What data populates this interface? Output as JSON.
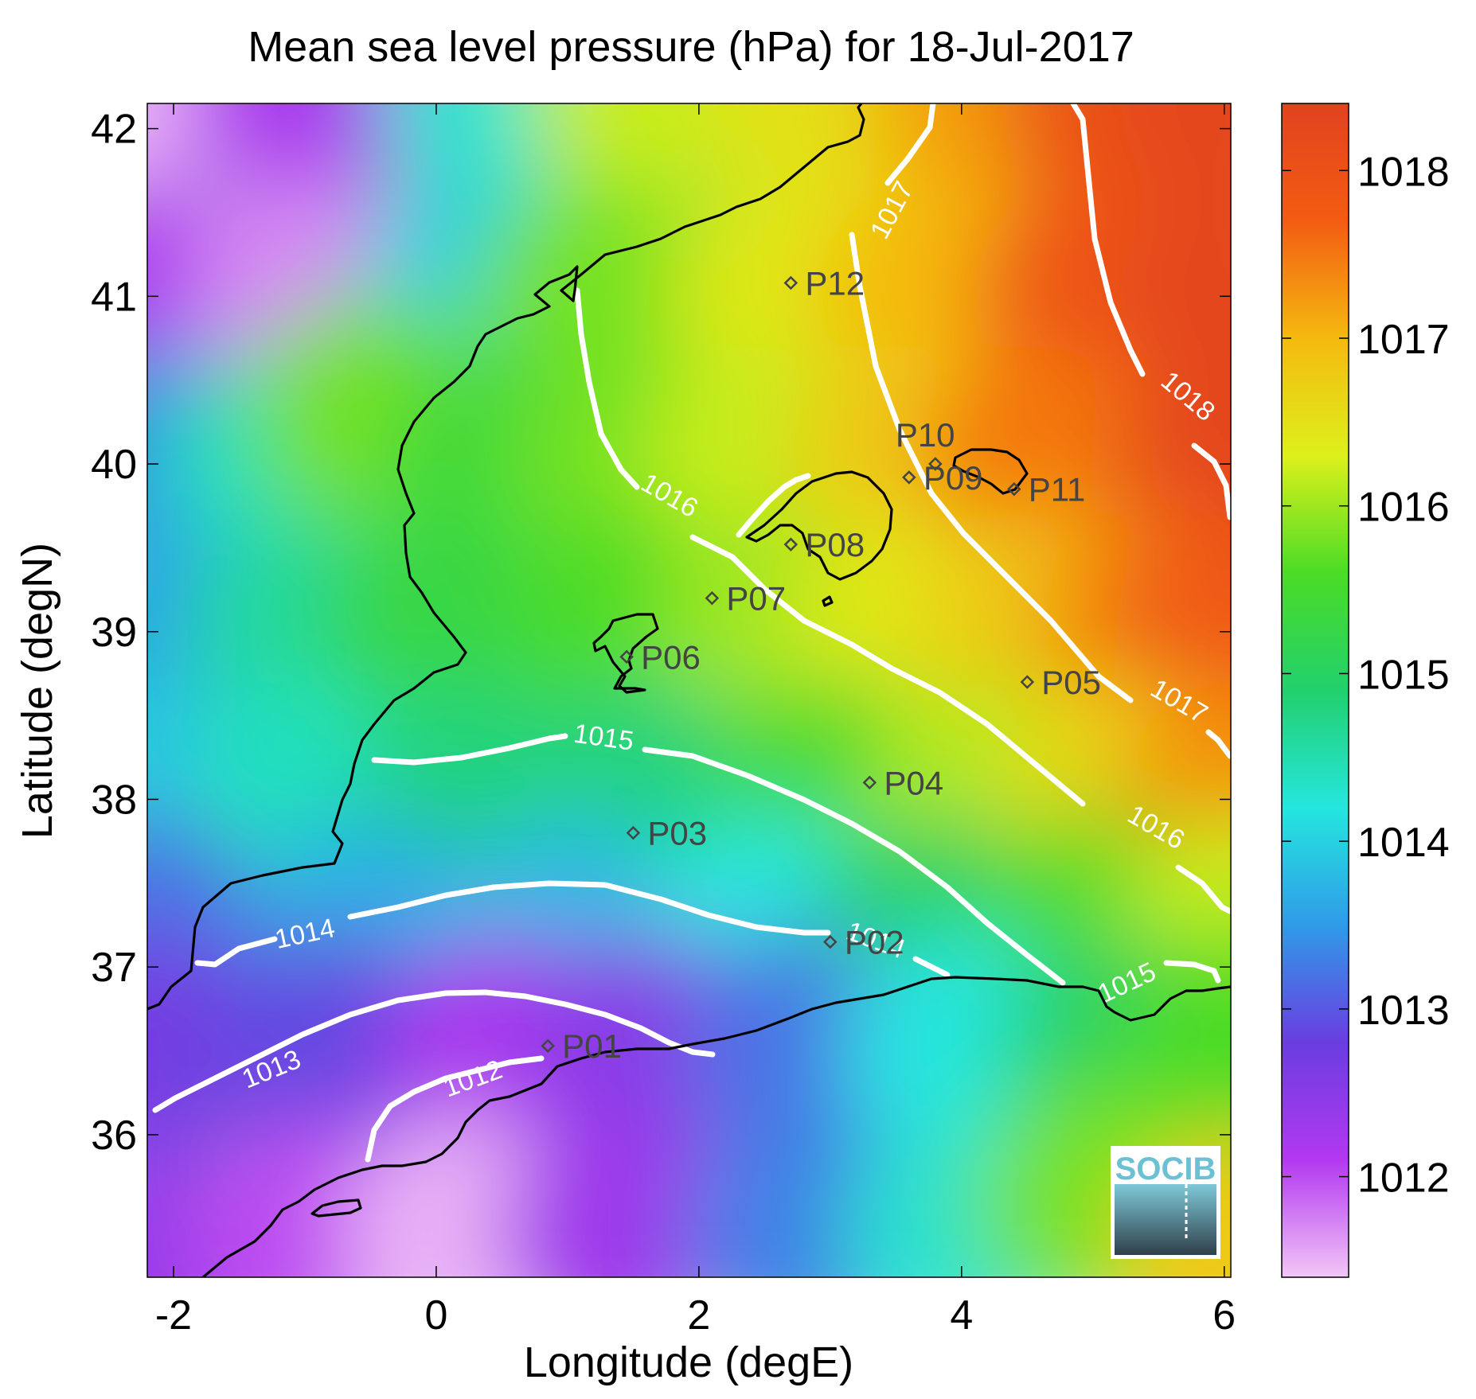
{
  "chart_data": {
    "type": "heatmap",
    "title": "Mean sea level pressure (hPa) for 18-Jul-2017",
    "xlabel": "Longitude (degE)",
    "ylabel": "Latitude (degN)",
    "xlim": [
      -2.2,
      6.05
    ],
    "ylim": [
      35.15,
      42.15
    ],
    "xticks": [
      -2,
      0,
      2,
      4,
      6
    ],
    "yticks": [
      36,
      37,
      38,
      39,
      40,
      41,
      42
    ],
    "colorbar": {
      "label": "",
      "range": [
        1011.4,
        1018.4
      ],
      "ticks": [
        1012,
        1013,
        1014,
        1015,
        1016,
        1017,
        1018
      ]
    },
    "colors": [
      "#f2c6f7",
      "#b338f0",
      "#6a3de0",
      "#2f9be8",
      "#25e6df",
      "#22d06d",
      "#4bdc26",
      "#ddf01b",
      "#f5b910",
      "#f35c12",
      "#e1431f"
    ],
    "contour_labels": [
      "1012",
      "1013",
      "1014",
      "1014",
      "1015",
      "1015",
      "1016",
      "1016",
      "1017",
      "1017",
      "1018"
    ],
    "stations": [
      {
        "name": "P01",
        "lon": 0.85,
        "lat": 36.53
      },
      {
        "name": "P02",
        "lon": 3.0,
        "lat": 37.15
      },
      {
        "name": "P03",
        "lon": 1.5,
        "lat": 37.8
      },
      {
        "name": "P04",
        "lon": 3.3,
        "lat": 38.1
      },
      {
        "name": "P05",
        "lon": 4.5,
        "lat": 38.7
      },
      {
        "name": "P06",
        "lon": 1.45,
        "lat": 38.85
      },
      {
        "name": "P07",
        "lon": 2.1,
        "lat": 39.2
      },
      {
        "name": "P08",
        "lon": 2.7,
        "lat": 39.52
      },
      {
        "name": "P09",
        "lon": 3.6,
        "lat": 39.92
      },
      {
        "name": "P10",
        "lon": 3.8,
        "lat": 40.0
      },
      {
        "name": "P11",
        "lon": 4.4,
        "lat": 39.85
      },
      {
        "name": "P12",
        "lon": 2.7,
        "lat": 41.08
      }
    ],
    "logo": "SOCIB"
  }
}
